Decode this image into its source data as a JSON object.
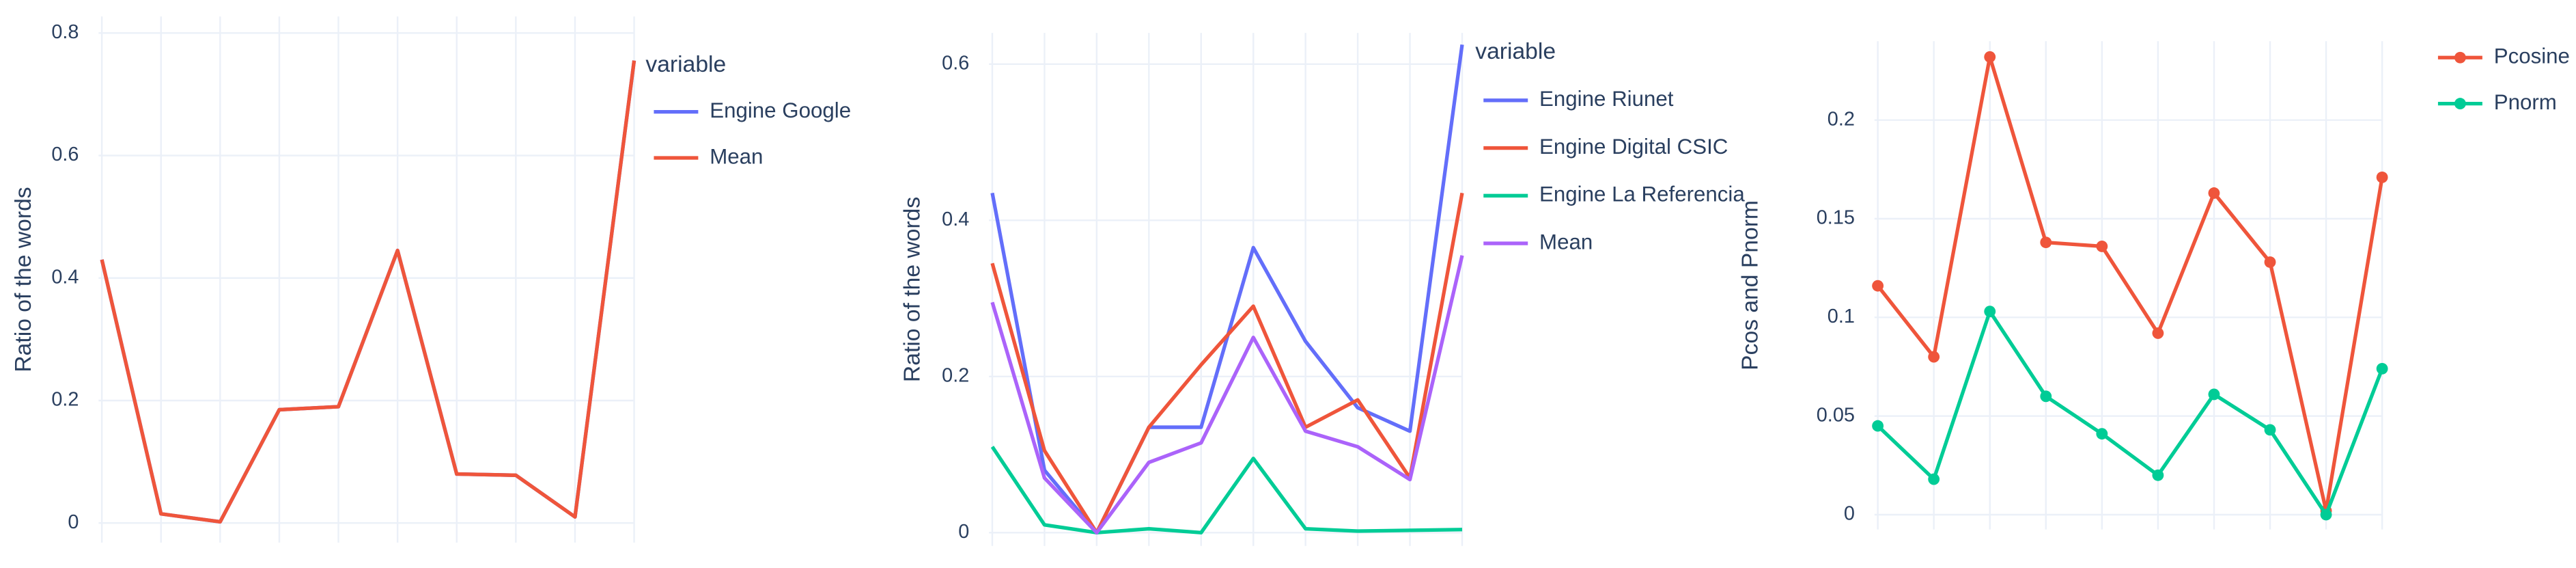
{
  "chart_data": [
    {
      "type": "line",
      "ylabel": "Ratio of the words",
      "legend_title": "variable",
      "categories": [
        null,
        null,
        null,
        null,
        null,
        null,
        null,
        null,
        null,
        null
      ],
      "ylim": [
        -0.032,
        0.827
      ],
      "yticks": [
        0,
        0.2,
        0.4,
        0.6,
        0.8
      ],
      "grid": true,
      "markers": false,
      "series": [
        {
          "name": "Engine Google",
          "color": "#636efa",
          "values": [
            0.43,
            0.015,
            0.002,
            0.185,
            0.19,
            0.445,
            0.08,
            0.078,
            0.01,
            0.755
          ]
        },
        {
          "name": "Mean",
          "color": "#ef553b",
          "values": [
            0.43,
            0.015,
            0.002,
            0.185,
            0.19,
            0.445,
            0.08,
            0.078,
            0.01,
            0.755
          ]
        }
      ]
    },
    {
      "type": "line",
      "ylabel": "Ratio of the words",
      "legend_title": "variable",
      "categories": [
        null,
        null,
        null,
        null,
        null,
        null,
        null,
        null,
        null,
        null
      ],
      "ylim": [
        -0.017,
        0.64
      ],
      "yticks": [
        0,
        0.2,
        0.4,
        0.6
      ],
      "grid": true,
      "markers": false,
      "series": [
        {
          "name": "Engine Riunet",
          "color": "#636efa",
          "values": [
            0.435,
            0.08,
            0,
            0.135,
            0.135,
            0.365,
            0.245,
            0.16,
            0.13,
            0.625
          ]
        },
        {
          "name": "Engine Digital CSIC",
          "color": "#ef553b",
          "values": [
            0.345,
            0.105,
            0,
            0.135,
            0.215,
            0.29,
            0.135,
            0.17,
            0.07,
            0.435
          ]
        },
        {
          "name": "Engine La Referencia",
          "color": "#00cc96",
          "values": [
            0.11,
            0.01,
            0,
            0.005,
            0,
            0.095,
            0.005,
            0.002,
            0.003,
            0.004
          ]
        },
        {
          "name": "Mean",
          "color": "#ab63fa",
          "values": [
            0.295,
            0.07,
            0,
            0.09,
            0.115,
            0.25,
            0.13,
            0.11,
            0.068,
            0.355
          ]
        }
      ]
    },
    {
      "type": "line",
      "ylabel": "Pcos and Pnorm",
      "categories": [
        null,
        null,
        null,
        null,
        null,
        null,
        null,
        null,
        null,
        null
      ],
      "ylim": [
        -0.0075,
        0.24
      ],
      "yticks": [
        0,
        0.05,
        0.1,
        0.15,
        0.2
      ],
      "grid": true,
      "markers": true,
      "series": [
        {
          "name": "Pcosine",
          "color": "#ef553b",
          "values": [
            0.116,
            0.08,
            0.232,
            0.138,
            0.136,
            0.092,
            0.163,
            0.128,
            0.002,
            0.171
          ]
        },
        {
          "name": "Pnorm",
          "color": "#00cc96",
          "values": [
            0.045,
            0.018,
            0.103,
            0.06,
            0.041,
            0.02,
            0.061,
            0.043,
            0,
            0.074
          ]
        }
      ]
    }
  ]
}
